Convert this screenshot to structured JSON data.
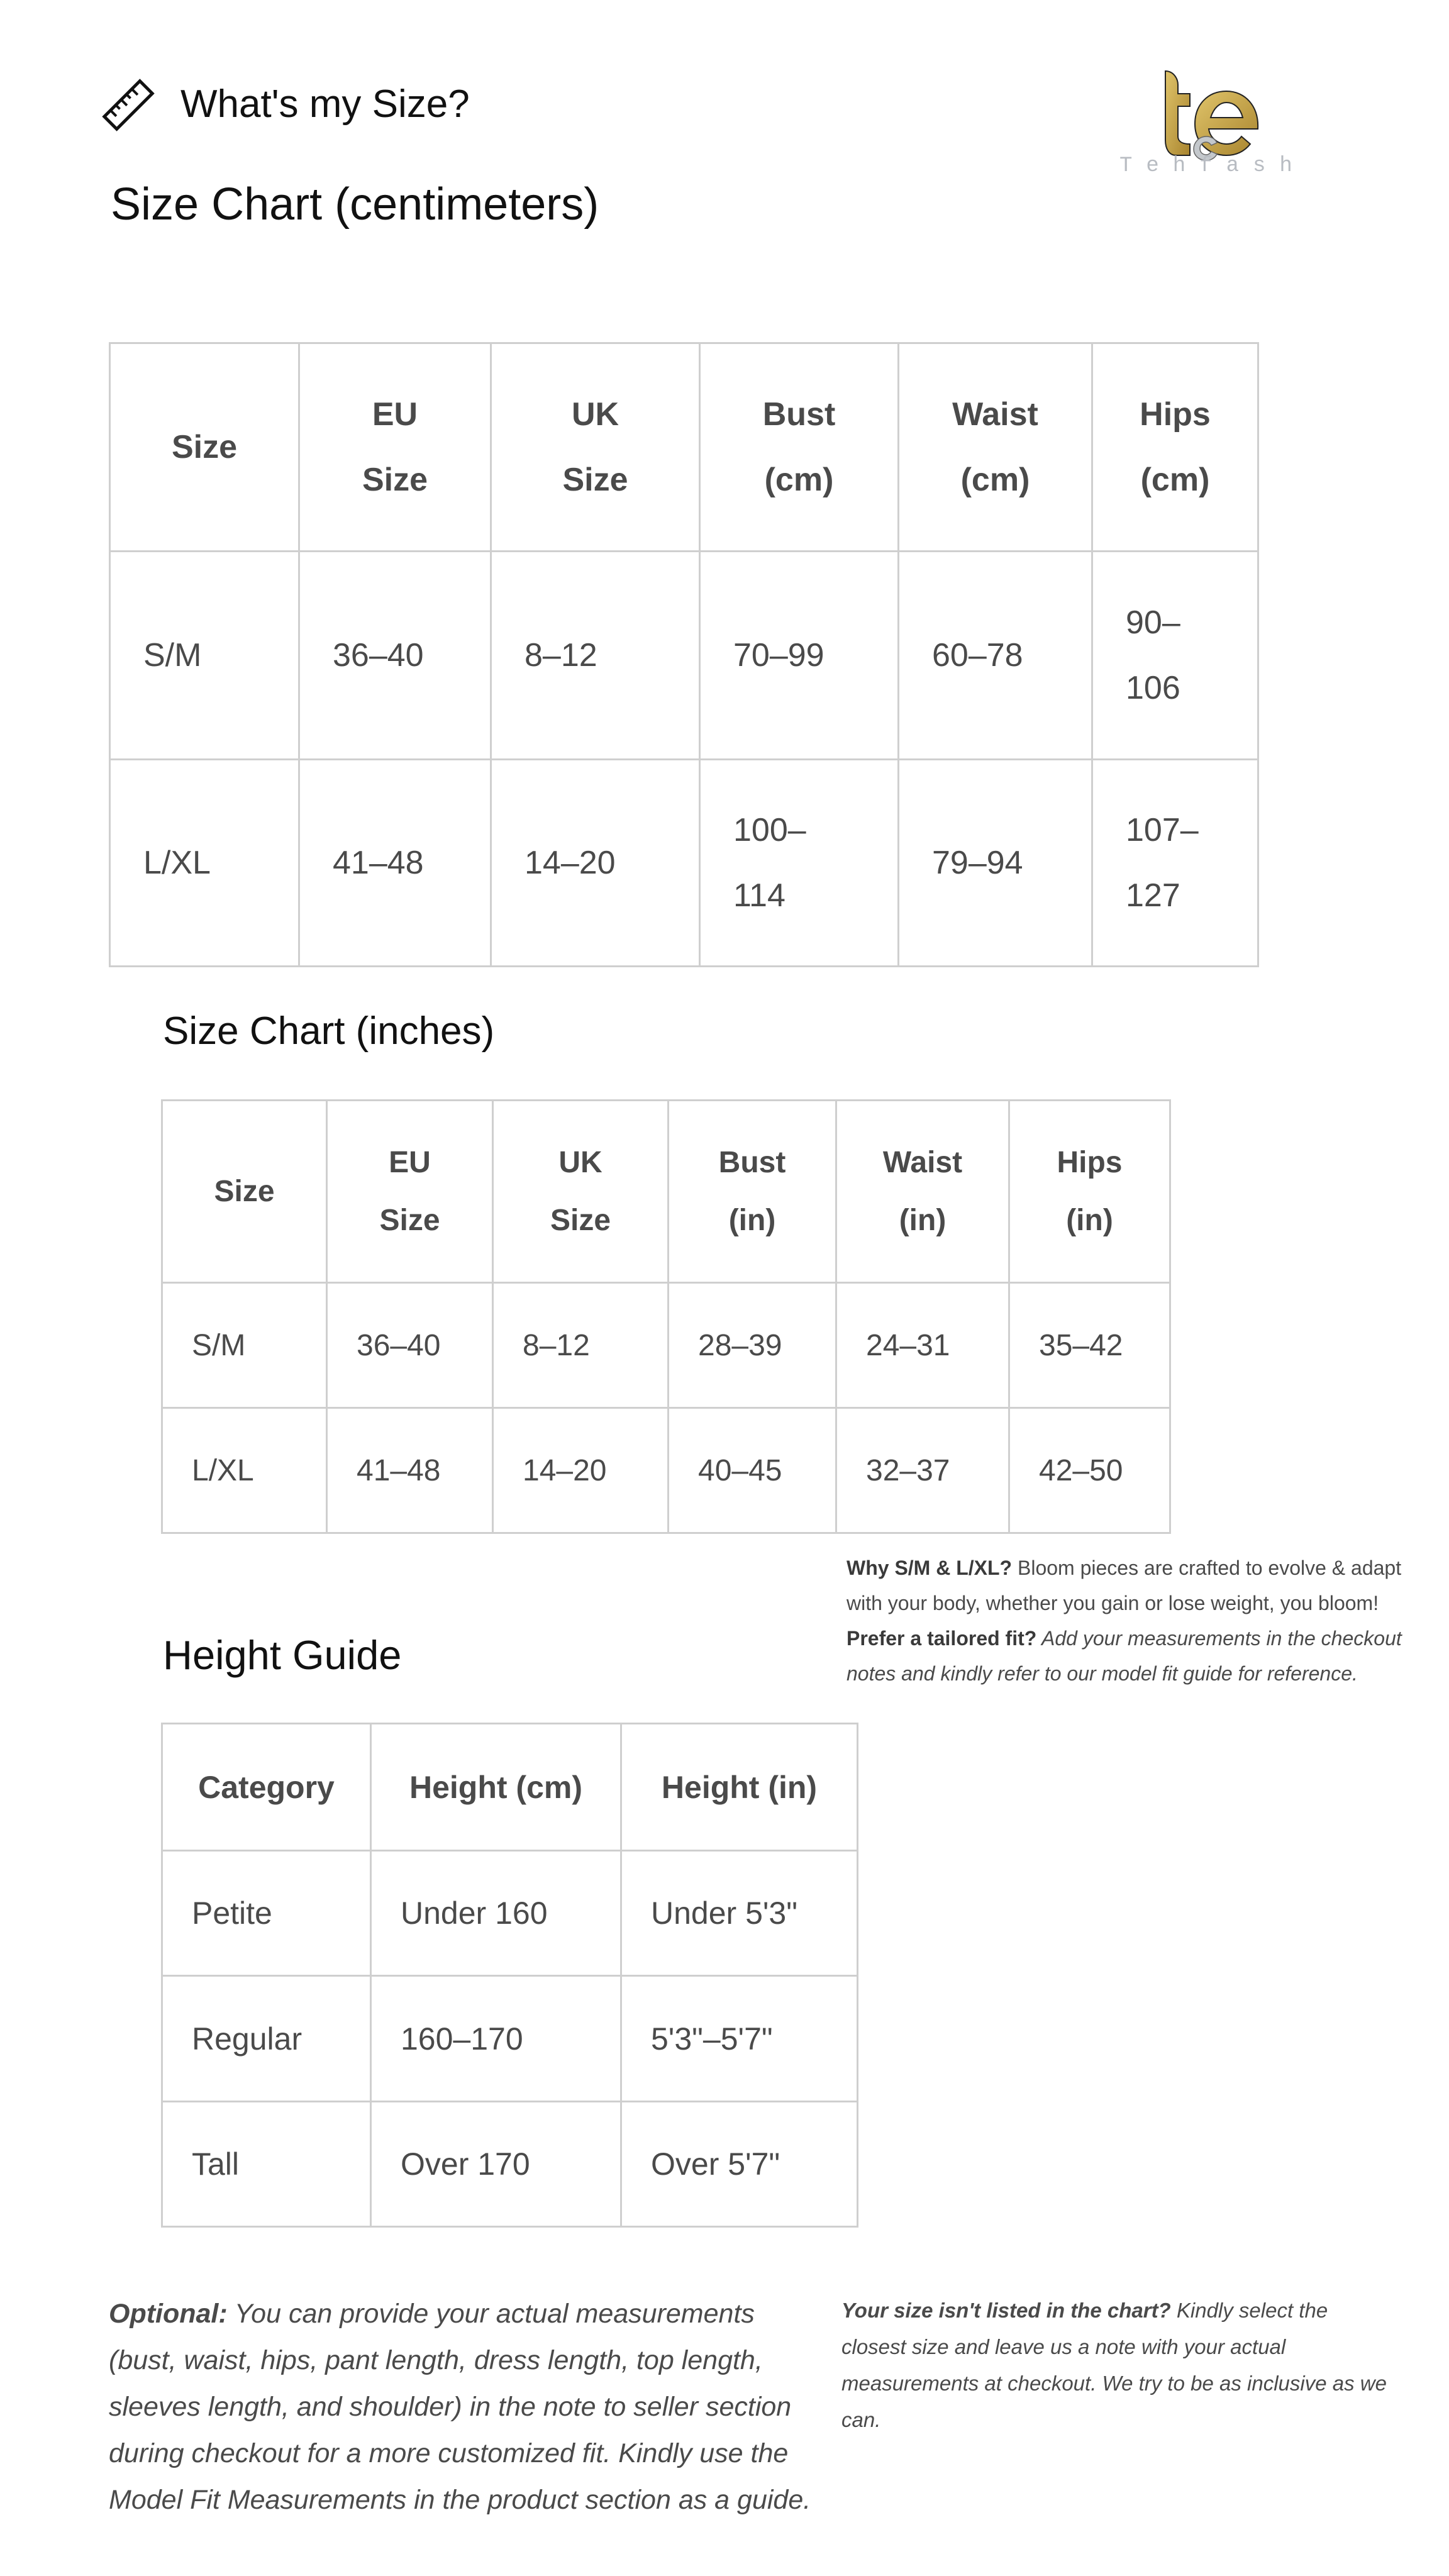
{
  "header": {
    "title": "What's my Size?",
    "icon": "ruler-icon"
  },
  "logo": {
    "wordmark": "Tehfash",
    "monogram": "tce",
    "colors": {
      "gold": "#c9a646",
      "silver": "#b8bcc2"
    }
  },
  "cm_chart": {
    "title": "Size Chart (centimeters)",
    "headers": [
      [
        "Size"
      ],
      [
        "EU",
        "Size"
      ],
      [
        "UK",
        "Size"
      ],
      [
        "Bust",
        "(cm)"
      ],
      [
        "Waist",
        "(cm)"
      ],
      [
        "Hips",
        "(cm)"
      ]
    ],
    "rows": [
      [
        [
          "S/M"
        ],
        [
          "36–40"
        ],
        [
          "8–12"
        ],
        [
          "70–99"
        ],
        [
          "60–78"
        ],
        [
          "90–",
          "106"
        ]
      ],
      [
        [
          "L/XL"
        ],
        [
          "41–48"
        ],
        [
          "14–20"
        ],
        [
          "100–",
          "114"
        ],
        [
          "79–94"
        ],
        [
          "107–",
          "127"
        ]
      ]
    ]
  },
  "in_chart": {
    "title": "Size Chart (inches)",
    "headers": [
      [
        "Size"
      ],
      [
        "EU",
        "Size"
      ],
      [
        "UK",
        "Size"
      ],
      [
        "Bust",
        "(in)"
      ],
      [
        "Waist",
        "(in)"
      ],
      [
        "Hips",
        "(in)"
      ]
    ],
    "rows": [
      [
        "S/M",
        "36–40",
        "8–12",
        "28–39",
        "24–31",
        "35–42"
      ],
      [
        "L/XL",
        "41–48",
        "14–20",
        "40–45",
        "32–37",
        "42–50"
      ]
    ]
  },
  "why_note": {
    "bold1": "Why S/M & L/XL?",
    "text1": " Bloom pieces are crafted to evolve & adapt with your body, whether you gain or lose weight, you bloom!",
    "bold2": "Prefer a tailored fit?",
    "text2": " Add your measurements in the checkout notes and kindly refer to our model fit guide for reference."
  },
  "height_guide": {
    "title": "Height Guide",
    "headers": [
      "Category",
      "Height (cm)",
      "Height (in)"
    ],
    "rows": [
      [
        "Petite",
        "Under 160",
        "Under 5'3\""
      ],
      [
        "Regular",
        "160–170",
        "5'3\"–5'7\""
      ],
      [
        "Tall",
        "Over 170",
        "Over 5'7\""
      ]
    ]
  },
  "optional_note": {
    "bold": "Optional:",
    "text": " You can provide your actual measurements (bust, waist, hips, pant length, dress length, top length, sleeves length, and shoulder) in the note to seller section during checkout for a more customized fit. Kindly use the Model Fit Measurements in the product section as a guide."
  },
  "size_note": {
    "bold": "Your size isn't listed in the chart?",
    "text": " Kindly select the closest size and leave us a note with your actual measurements at checkout. We try to be as inclusive as we can."
  }
}
